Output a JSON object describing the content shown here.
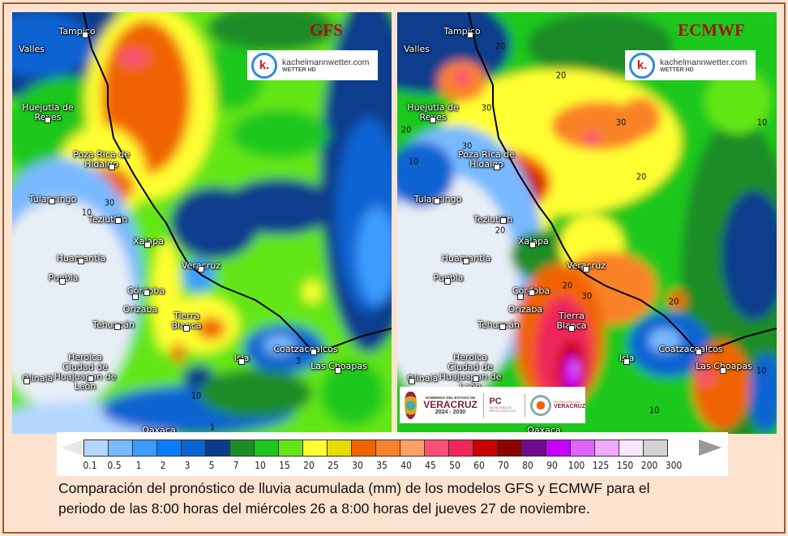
{
  "panels": {
    "gfs": {
      "model_label": "GFS",
      "contour_labels": [
        "30",
        "10",
        "10",
        "3",
        "1"
      ]
    },
    "ecmwf": {
      "model_label": "ECMWF",
      "contour_labels": [
        "20",
        "20",
        "30",
        "30",
        "10",
        "20",
        "30",
        "10",
        "20",
        "20",
        "20",
        "30",
        "20",
        "10",
        "10"
      ]
    }
  },
  "cities": {
    "tampico": "Tampico",
    "valles": "Valles",
    "huejutla": "Huejutla de Reyes",
    "pozarica": "Poza Rica de Hidalgo",
    "tulancingo": "Tulancingo",
    "teziutlan": "Teziutlán",
    "xalapa": "Xalapa",
    "huamantla": "Huamantla",
    "puebla": "Puebla",
    "veracruz": "Veracruz",
    "cordoba": "Córdoba",
    "orizaba": "Orizaba",
    "tehuacan": "Tehuacán",
    "tierrablanca": "Tierra Blanca",
    "huajuapan": "Heroica Ciudad de Huajuapan de León",
    "olinala": "Olinalá",
    "isla": "Isla",
    "coatzacoalcos": "Coatzacoalcos",
    "laschoapas": "Las Choapas",
    "oaxaca": "Oaxaca"
  },
  "watermark": {
    "k": "k.",
    "site": "kachelmannwetter.com",
    "sub": "WETTER HD"
  },
  "gov_logo": {
    "line1": "GOBIERNO DEL ESTADO DE",
    "state": "VERACRUZ",
    "years": "2024 - 2030",
    "pc": "PC",
    "pc_sub": "SECRETARÍA DE PROTECCIÓN CIVIL",
    "pcv_small": "PROTECCIÓN CIVIL",
    "pcv_big": "VERACRUZ"
  },
  "legend": {
    "unit": "mm",
    "ticks": [
      "0.1",
      "0.5",
      "1",
      "2",
      "3",
      "5",
      "7",
      "10",
      "15",
      "20",
      "25",
      "30",
      "35",
      "40",
      "45",
      "50",
      "60",
      "70",
      "80",
      "90",
      "100",
      "125",
      "150",
      "200",
      "300"
    ],
    "colors": [
      "#b4d7ff",
      "#78b9ff",
      "#3c9bff",
      "#0a7dff",
      "#0a64d2",
      "#0a3c8c",
      "#1e8c28",
      "#1ec81e",
      "#64e614",
      "#ffff32",
      "#e6dc00",
      "#f06400",
      "#fa8228",
      "#ffa064",
      "#fa5078",
      "#f0285a",
      "#c80000",
      "#8c0000",
      "#6e0a8c",
      "#c800ff",
      "#e164ff",
      "#f0aaff",
      "#fae6ff",
      "#d2d2d2"
    ]
  },
  "caption": {
    "line1": "Comparación del pronóstico de lluvia acumulada (mm) de los modelos GFS y ECMWF para el",
    "line2": "periodo de las 8:00 horas del miércoles 26 a 8:00 horas del jueves 27 de noviembre."
  }
}
